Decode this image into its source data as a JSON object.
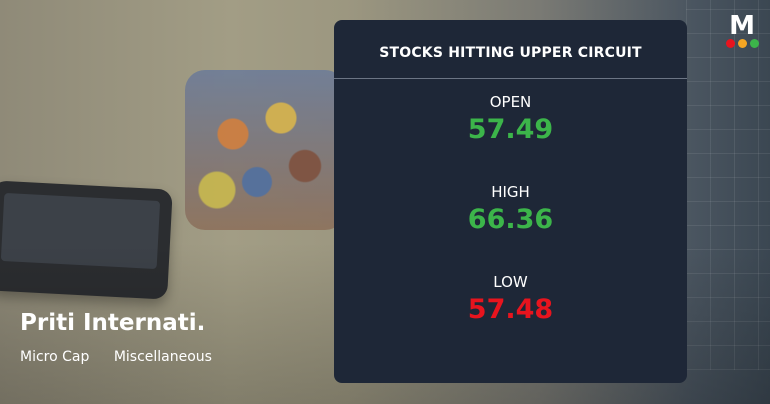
{
  "stock": {
    "name": "Priti Internati.",
    "cap": "Micro Cap",
    "sector": "Miscellaneous"
  },
  "card": {
    "title": "STOCKS HITTING UPPER CIRCUIT",
    "open": {
      "label": "OPEN",
      "value": "57.49",
      "color": "#3cb54a"
    },
    "high": {
      "label": "HIGH",
      "value": "66.36",
      "color": "#3cb54a"
    },
    "low": {
      "label": "LOW",
      "value": "57.48",
      "color": "#e8141e"
    }
  },
  "logo": {
    "letter": "M",
    "dots": [
      "#e8141e",
      "#f5a623",
      "#3cb54a"
    ]
  }
}
